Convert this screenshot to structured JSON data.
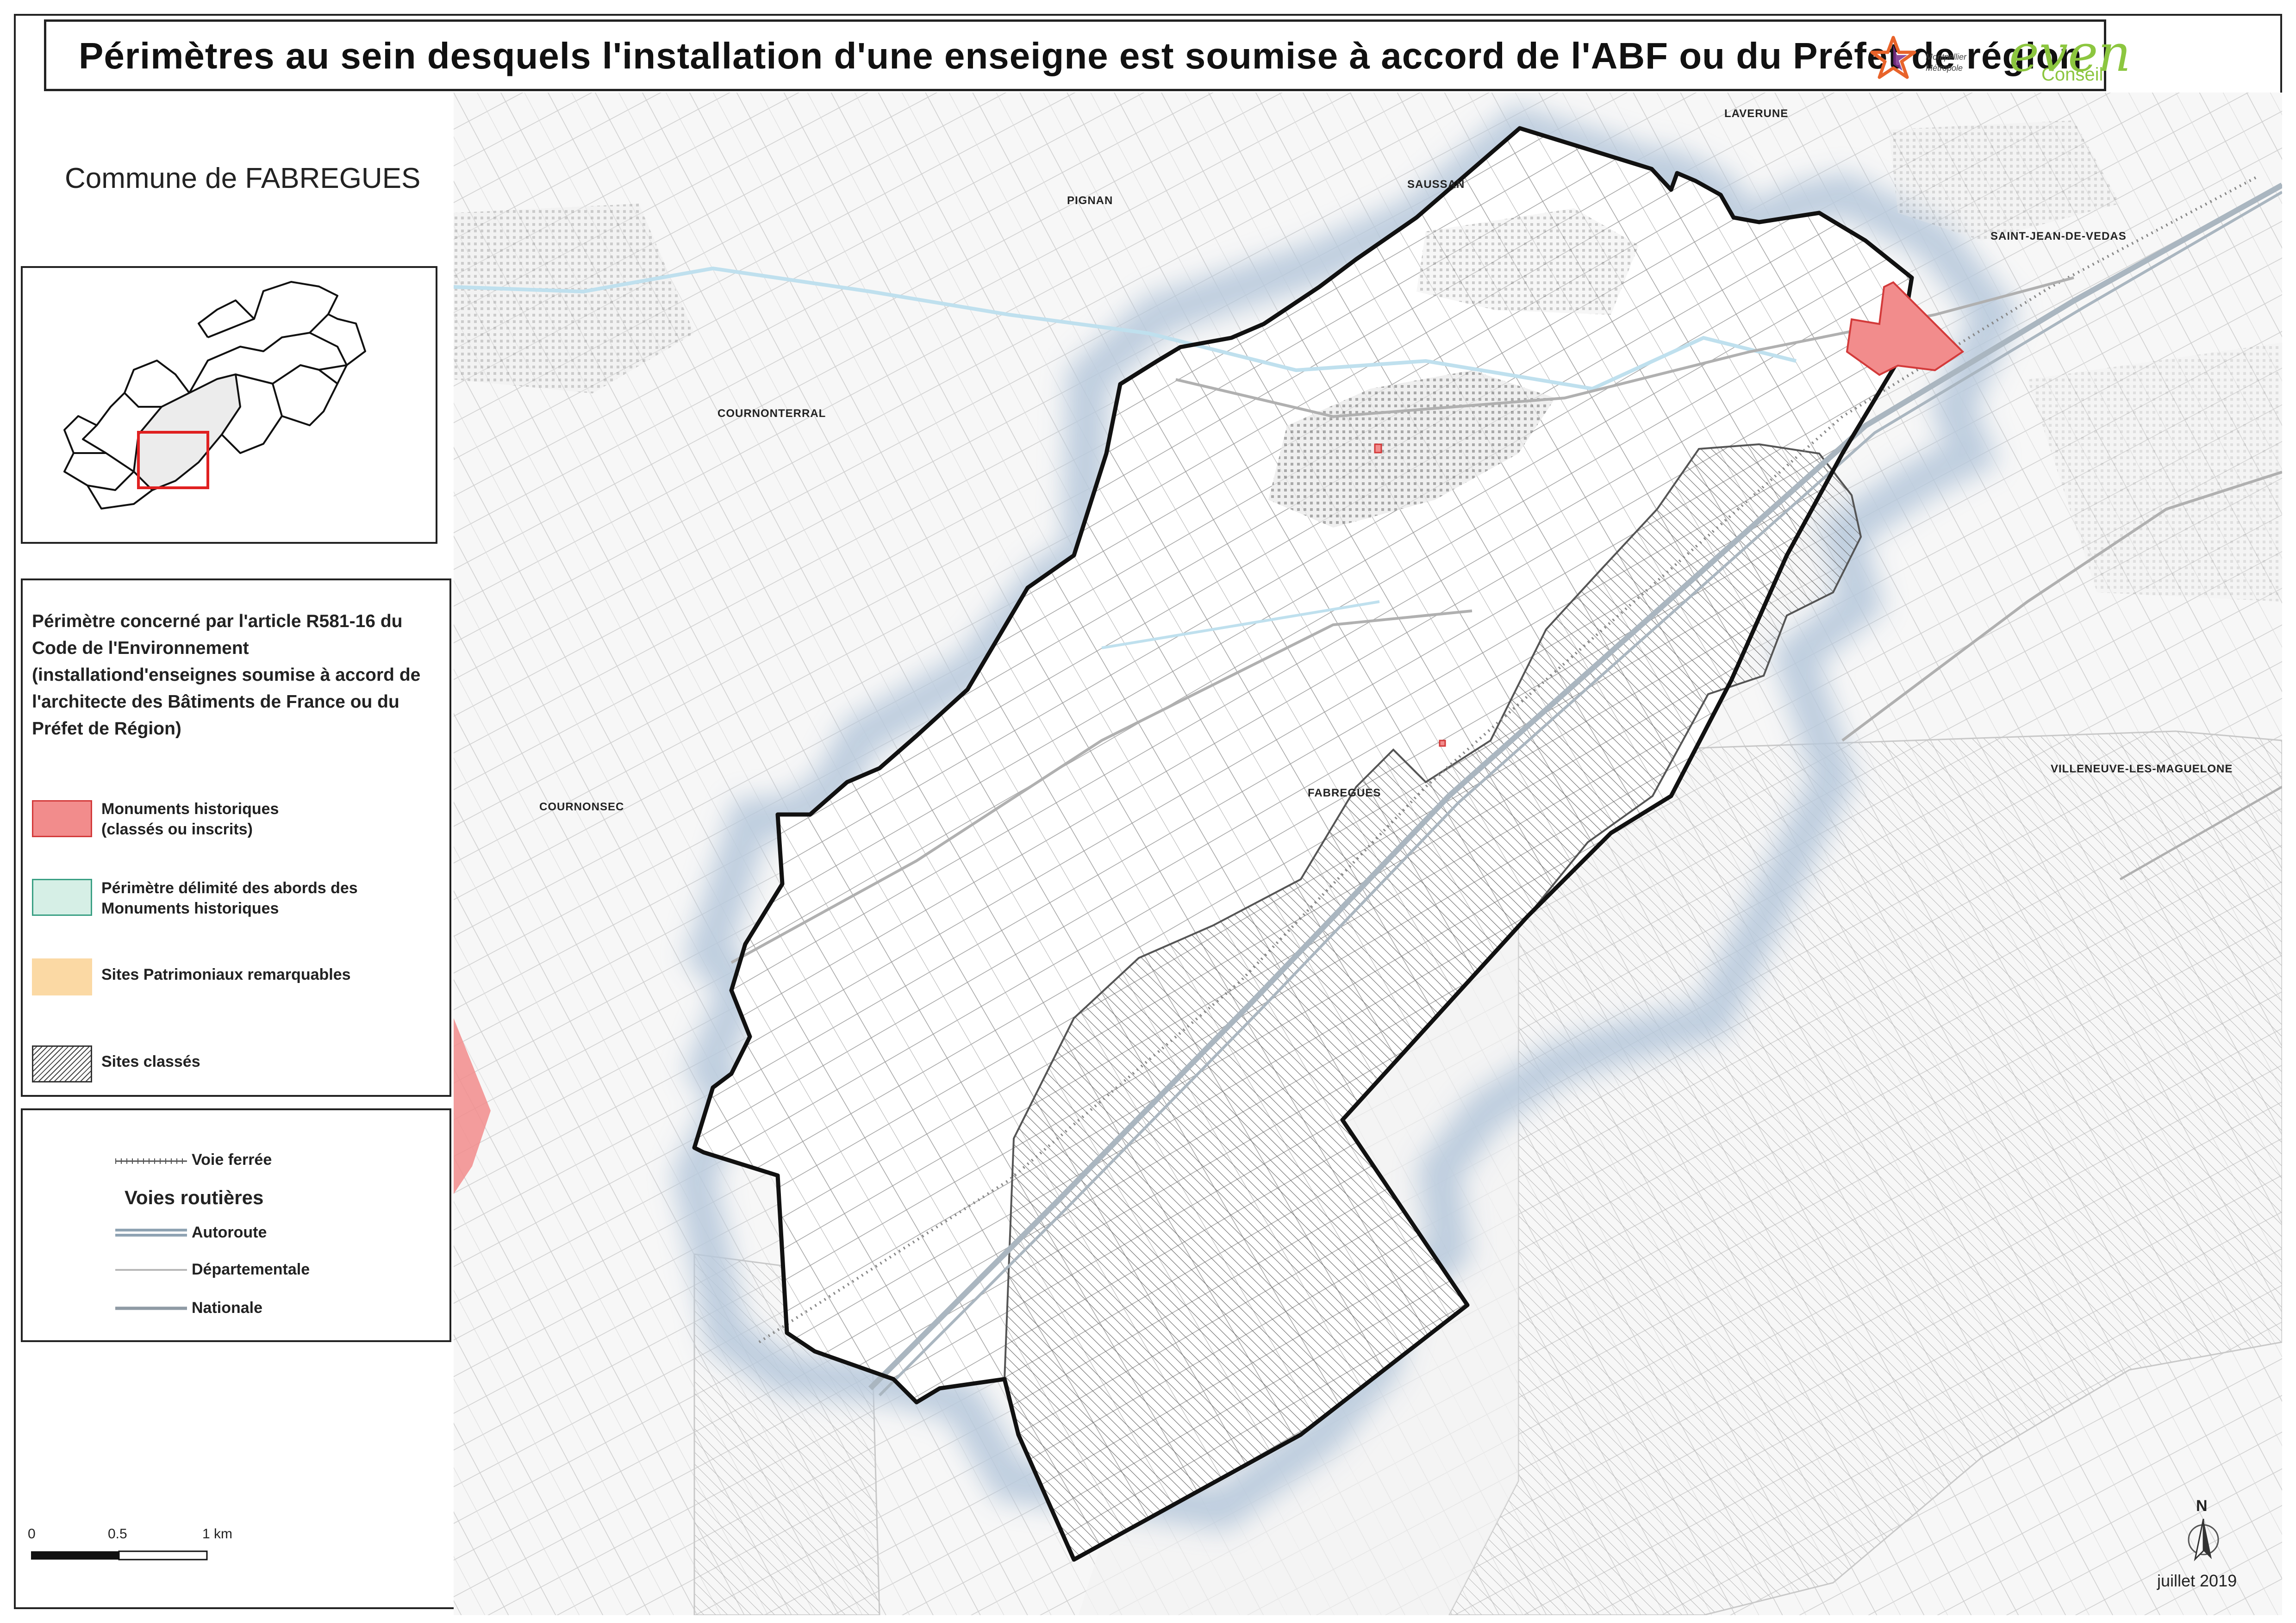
{
  "title": "Périmètres au sein desquels l'installation d'une enseigne est soumise à accord de l'ABF ou du Préfet de région",
  "logos": {
    "metropole_lines": [
      "Montpellier",
      "Métropole"
    ],
    "even_main": "even",
    "even_sub": "Conseil"
  },
  "commune_label": "Commune de FABREGUES",
  "legend": {
    "heading": "Périmètre concerné par l'article R581-16 du Code de l'Environnement (installationd'enseignes soumise à accord de l'architecte des Bâtiments de France ou du Préfet de Région)",
    "items": [
      {
        "label_line1": "Monuments historiques",
        "label_line2": "(classés ou inscrits)",
        "color": "#f28c8c",
        "border": "#d33a3a"
      },
      {
        "label_line1": "Périmètre délimité des abords des",
        "label_line2": "Monuments historiques",
        "color": "#d6efe6",
        "border": "#3aa084"
      },
      {
        "label_line1": "Sites Patrimoniaux remarquables",
        "label_line2": "",
        "color": "#fbd9a4",
        "border": "#fbd9a4"
      },
      {
        "label_line1": "Sites classés",
        "label_line2": "",
        "color": "hatched",
        "border": "#333333"
      }
    ]
  },
  "legend2": {
    "railway": "Voie ferrée",
    "roads_heading": "Voies routières",
    "roads": [
      "Autoroute",
      "Départementale",
      "Nationale"
    ]
  },
  "scale": {
    "labels": [
      "0",
      "0.5",
      "1 km"
    ]
  },
  "north_label": "N",
  "date": "juillet 2019",
  "place_names": [
    {
      "id": "laverune",
      "name": "LAVERUNE"
    },
    {
      "id": "saussan",
      "name": "SAUSSAN"
    },
    {
      "id": "pignan",
      "name": "PIGNAN"
    },
    {
      "id": "saint-jean",
      "name": "SAINT-JEAN-DE-VEDAS"
    },
    {
      "id": "cournonterral",
      "name": "COURNONTERRAL"
    },
    {
      "id": "cournonsec",
      "name": "COURNONSEC"
    },
    {
      "id": "fabregues",
      "name": "FABREGUES"
    },
    {
      "id": "villeneuve",
      "name": "VILLENEUVE-LES-MAGUELONE"
    }
  ],
  "colors": {
    "commune_outline": "#111111",
    "monument": "#f28c8c",
    "halo": "#b8c9dc",
    "hatch": "#555555"
  }
}
